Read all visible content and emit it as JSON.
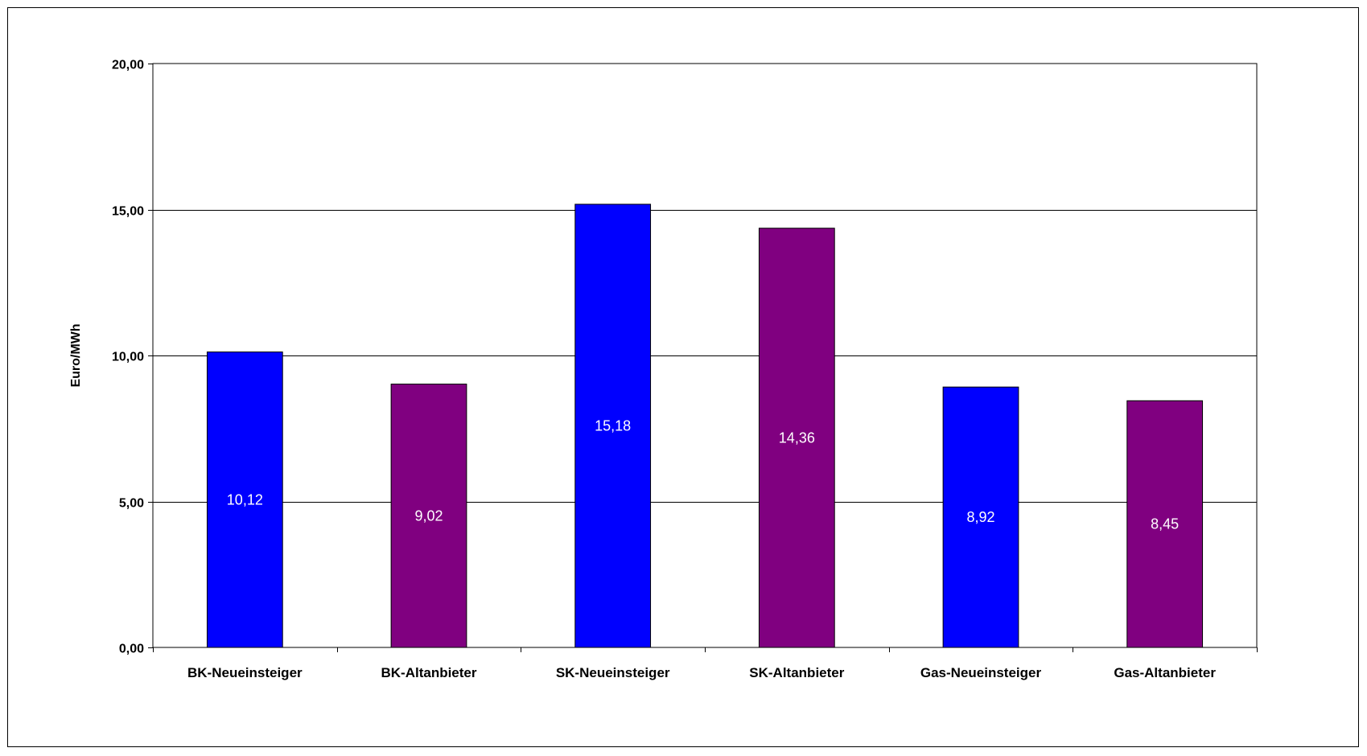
{
  "chart_data": {
    "type": "bar",
    "title": "",
    "xlabel": "",
    "ylabel": "Euro/MWh",
    "categories": [
      "BK-Neueinsteiger",
      "BK-Altanbieter",
      "SK-Neueinsteiger",
      "SK-Altanbieter",
      "Gas-Neueinsteiger",
      "Gas-Altanbieter"
    ],
    "values": [
      10.12,
      9.02,
      15.18,
      14.36,
      8.92,
      8.45
    ],
    "data_labels": [
      "10,12",
      "9,02",
      "15,18",
      "14,36",
      "8,92",
      "8,45"
    ],
    "bar_colors": [
      "#0000FF",
      "#800080",
      "#0000FF",
      "#800080",
      "#0000FF",
      "#800080"
    ],
    "ylim": [
      0,
      20
    ],
    "yticks": [
      0,
      5,
      10,
      15,
      20
    ],
    "ytick_labels": [
      "0,00",
      "5,00",
      "10,00",
      "15,00",
      "20,00"
    ],
    "grid": true,
    "legend": false
  }
}
